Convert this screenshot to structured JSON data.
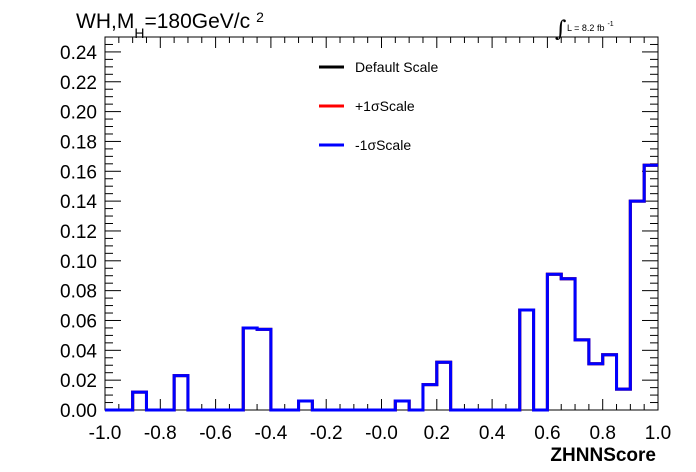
{
  "chart_data": {
    "type": "line",
    "title_parts": {
      "main": "WH,M",
      "sub": "H",
      "rest": "=180GeV/c",
      "sup": "2"
    },
    "lumi": {
      "symbol": "∫",
      "text": "L = 8.2 fb",
      "sup": "-1"
    },
    "xlabel": "ZHNNScore",
    "ylabel": "",
    "xlim": [
      -1.0,
      1.0
    ],
    "ylim": [
      0.0,
      0.25
    ],
    "x_ticks": [
      "-1.0",
      "-0.8",
      "-0.6",
      "-0.4",
      "-0.2",
      "-0.0",
      "0.2",
      "0.4",
      "0.6",
      "0.8",
      "1.0"
    ],
    "y_ticks": [
      "0.00",
      "0.02",
      "0.04",
      "0.06",
      "0.08",
      "0.10",
      "0.12",
      "0.14",
      "0.16",
      "0.18",
      "0.20",
      "0.22",
      "0.24"
    ],
    "bin_edges": [
      -1.0,
      -0.95,
      -0.9,
      -0.85,
      -0.8,
      -0.75,
      -0.7,
      -0.65,
      -0.6,
      -0.55,
      -0.5,
      -0.45,
      -0.4,
      -0.35,
      -0.3,
      -0.25,
      -0.2,
      -0.15,
      -0.1,
      -0.05,
      0.0,
      0.05,
      0.1,
      0.15,
      0.2,
      0.25,
      0.3,
      0.35,
      0.4,
      0.45,
      0.5,
      0.55,
      0.6,
      0.65,
      0.7,
      0.75,
      0.8,
      0.85,
      0.9,
      0.95,
      1.0
    ],
    "series": [
      {
        "name": "Default Scale",
        "color": "#000000",
        "values": [
          0,
          0,
          0.012,
          0,
          0,
          0.023,
          0,
          0,
          0,
          0,
          0.055,
          0.054,
          0,
          0,
          0.006,
          0,
          0,
          0,
          0,
          0,
          0,
          0.006,
          0,
          0.017,
          0.032,
          0,
          0,
          0,
          0,
          0,
          0.067,
          0,
          0.091,
          0.088,
          0.047,
          0.031,
          0.037,
          0.014,
          0.14,
          0.164
        ]
      },
      {
        "name": "+1σScale",
        "color": "#ff0000",
        "values": [
          0,
          0,
          0.012,
          0,
          0,
          0.023,
          0,
          0,
          0,
          0,
          0.055,
          0.054,
          0,
          0,
          0.006,
          0,
          0,
          0,
          0,
          0,
          0,
          0.006,
          0,
          0.017,
          0.032,
          0,
          0,
          0,
          0,
          0,
          0.067,
          0,
          0.091,
          0.088,
          0.047,
          0.031,
          0.037,
          0.014,
          0.14,
          0.164
        ]
      },
      {
        "name": "-1σScale",
        "color": "#0000ff",
        "values": [
          0,
          0,
          0.012,
          0,
          0,
          0.023,
          0,
          0,
          0,
          0,
          0.055,
          0.054,
          0,
          0,
          0.006,
          0,
          0,
          0,
          0,
          0,
          0,
          0.006,
          0,
          0.017,
          0.032,
          0,
          0,
          0,
          0,
          0,
          0.067,
          0,
          0.091,
          0.088,
          0.047,
          0.031,
          0.037,
          0.014,
          0.14,
          0.164
        ]
      }
    ],
    "legend_placement": "top-center",
    "grid": false
  }
}
